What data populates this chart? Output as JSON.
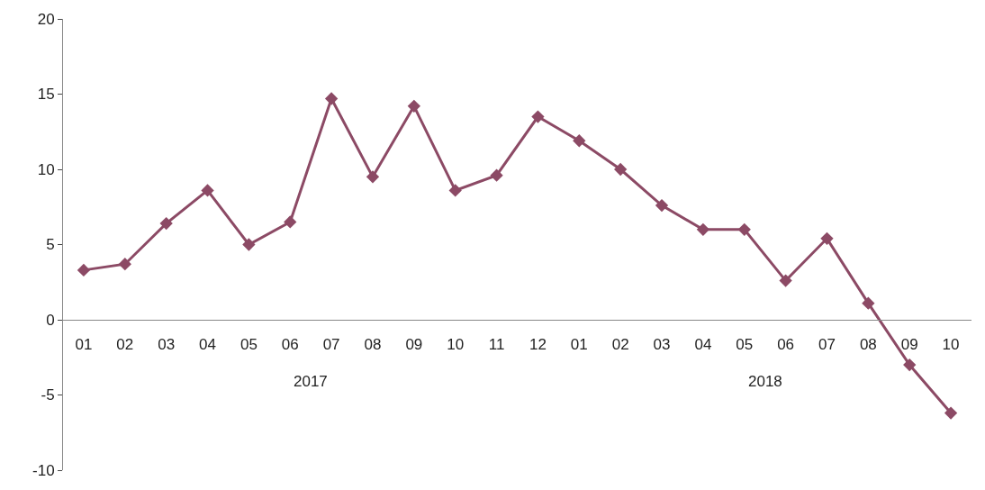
{
  "chart_data": {
    "type": "line",
    "categories": [
      "01",
      "02",
      "03",
      "04",
      "05",
      "06",
      "07",
      "08",
      "09",
      "10",
      "11",
      "12",
      "01",
      "02",
      "03",
      "04",
      "05",
      "06",
      "07",
      "08",
      "09",
      "10"
    ],
    "series": [
      {
        "color": "#8c4a65",
        "values": [
          3.3,
          3.7,
          6.4,
          8.6,
          5.0,
          6.5,
          14.7,
          9.5,
          14.2,
          8.6,
          9.6,
          13.5,
          11.9,
          10.0,
          7.6,
          6.0,
          6.0,
          2.6,
          5.4,
          1.1,
          -3.0,
          -6.2
        ]
      }
    ],
    "annotations": [
      "2017",
      "2018"
    ],
    "ylim": [
      -10,
      20
    ],
    "yticks": [
      -10,
      -5,
      0,
      5,
      10,
      15,
      20
    ],
    "marker": "diamond",
    "line_style": "solid",
    "legend": false
  }
}
